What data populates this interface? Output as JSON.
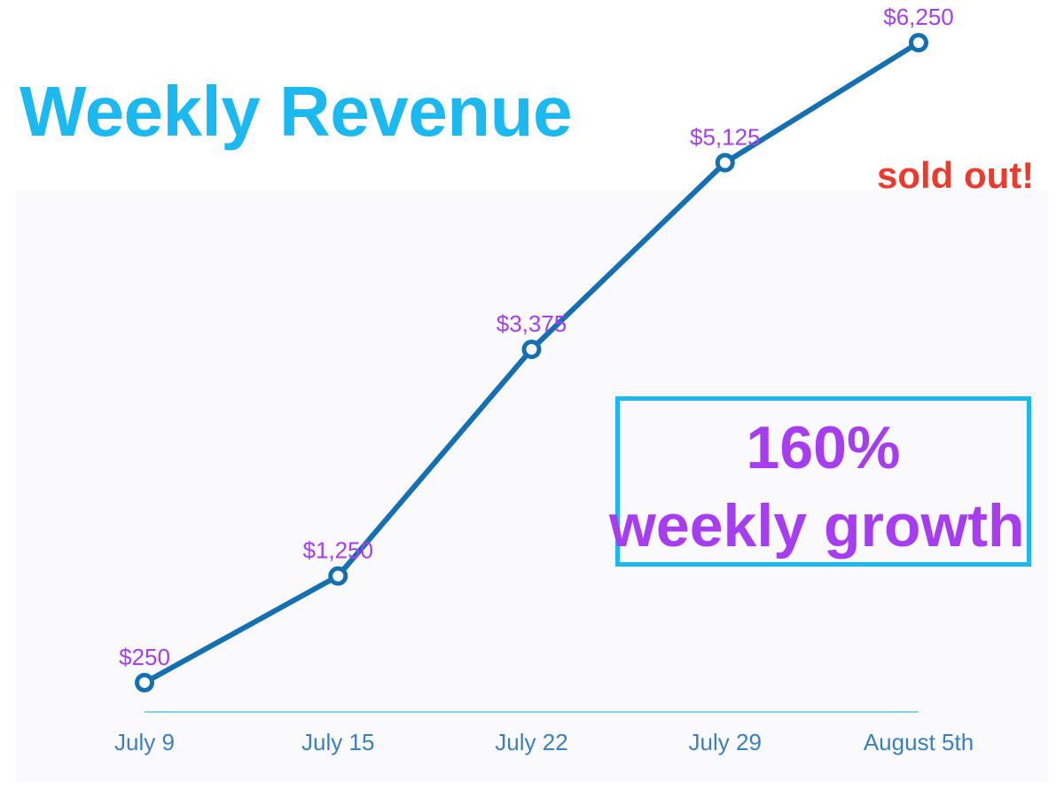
{
  "chart_data": {
    "type": "line",
    "title": "Weekly Revenue",
    "xlabel": "",
    "ylabel": "",
    "categories": [
      "July 9",
      "July 15",
      "July 22",
      "July 29",
      "August 5th"
    ],
    "series": [
      {
        "values": [
          250,
          1250,
          3375,
          5125,
          6250
        ],
        "data_labels": [
          "$250",
          "$1,250",
          "$3,375",
          "$5,125",
          "$6,250"
        ],
        "color": "#1470b0"
      }
    ],
    "ylim": [
      0,
      6650
    ],
    "grid": false,
    "legend": "none",
    "label_color": "#a63ef0",
    "axis_color": "#5cc8e8",
    "tick_color": "#3a7fc0",
    "annotations": [
      {
        "text": "sold out!",
        "color": "#ea3b2e"
      }
    ],
    "callout": {
      "line1": "160%",
      "line2": "weekly growth",
      "text_color": "#a63ef0",
      "border_color": "#1cb8f0"
    }
  }
}
